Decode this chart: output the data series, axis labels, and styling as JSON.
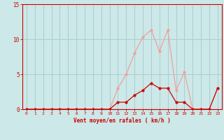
{
  "x": [
    0,
    1,
    2,
    3,
    4,
    5,
    6,
    7,
    8,
    9,
    10,
    11,
    12,
    13,
    14,
    15,
    16,
    17,
    18,
    19,
    20,
    21,
    22,
    23
  ],
  "rafales": [
    0,
    0,
    0,
    0,
    0,
    0,
    0,
    0,
    0,
    0,
    0,
    3,
    5,
    8,
    10.3,
    11.3,
    8.3,
    11.3,
    2.7,
    5.3,
    0,
    0,
    0,
    3
  ],
  "moyen": [
    0,
    0,
    0,
    0,
    0,
    0,
    0,
    0,
    0,
    0,
    0,
    1,
    1,
    2,
    2.7,
    3.7,
    3.0,
    3.0,
    1.0,
    1.0,
    0,
    0,
    0,
    3
  ],
  "color_rafales": "#f0a0a0",
  "color_moyen": "#cc0000",
  "bg_color": "#cce8e8",
  "grid_color": "#aacece",
  "axis_color": "#cc0000",
  "tick_color": "#cc0000",
  "xlabel": "Vent moyen/en rafales ( km/h )",
  "ylim": [
    0,
    15
  ],
  "ytick_vals": [
    0,
    5,
    10,
    15
  ],
  "ytick_labels": [
    "0",
    "5",
    "10",
    "15"
  ],
  "xtick_vals": [
    0,
    1,
    2,
    3,
    4,
    5,
    6,
    7,
    8,
    9,
    10,
    11,
    12,
    13,
    14,
    15,
    16,
    17,
    18,
    19,
    20,
    21,
    22,
    23
  ],
  "xlim": [
    -0.5,
    23.5
  ]
}
